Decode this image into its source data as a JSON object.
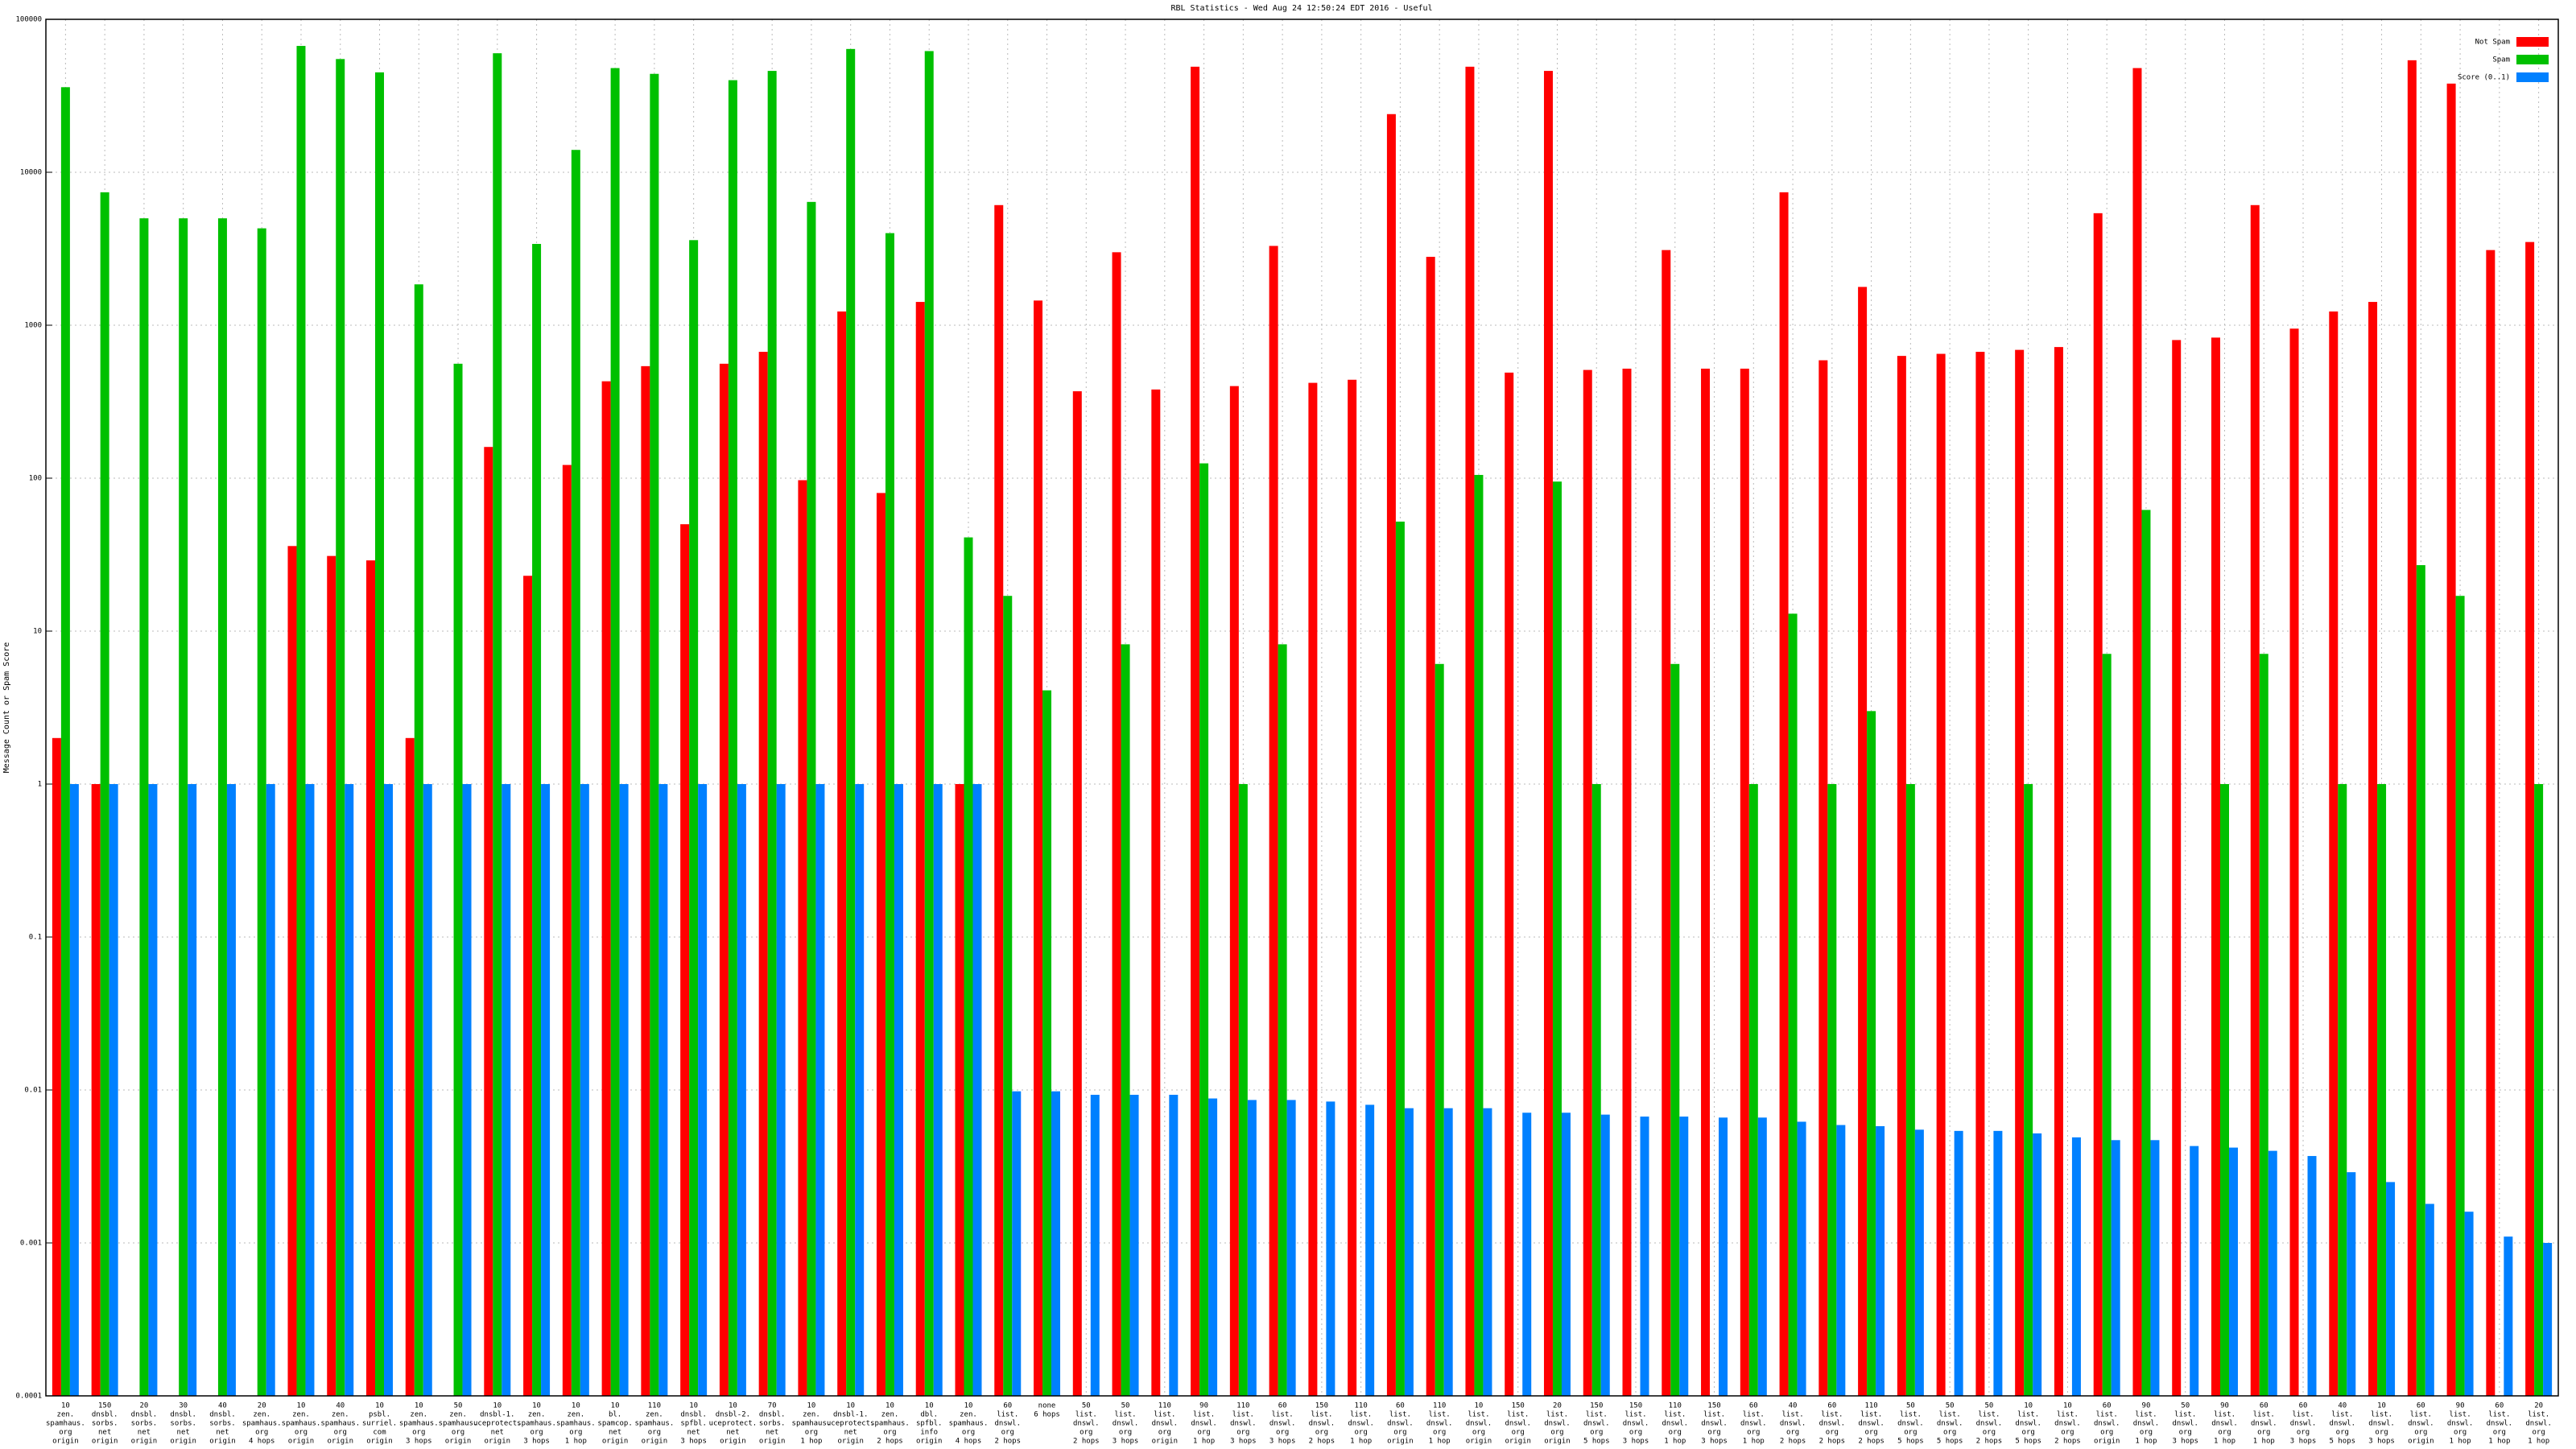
{
  "chart_data": {
    "type": "bar",
    "title": "RBL Statistics - Wed Aug 24 12:50:24 EDT 2016 - Useful",
    "y_label": "Message Count or Spam Score",
    "log_scale": true,
    "grid": true,
    "legend": "top-right",
    "ylim": [
      0.0001,
      100000
    ],
    "yticks": [
      0.0001,
      0.001,
      0.01,
      0.1,
      1,
      10,
      100,
      1000,
      10000,
      100000
    ],
    "categories": [
      [
        "10",
        "zen.",
        "spamhaus.",
        "org",
        "origin"
      ],
      [
        "150",
        "dnsbl.",
        "sorbs.",
        "net",
        "origin"
      ],
      [
        "20",
        "dnsbl.",
        "sorbs.",
        "net",
        "origin"
      ],
      [
        "30",
        "dnsbl.",
        "sorbs.",
        "net",
        "origin"
      ],
      [
        "40",
        "dnsbl.",
        "sorbs.",
        "net",
        "origin"
      ],
      [
        "20",
        "zen.",
        "spamhaus.",
        "org",
        "4 hops"
      ],
      [
        "10",
        "zen.",
        "spamhaus.",
        "org",
        "origin"
      ],
      [
        "40",
        "zen.",
        "spamhaus.",
        "org",
        "origin"
      ],
      [
        "10",
        "psbl.",
        "surriel.",
        "com",
        "origin"
      ],
      [
        "10",
        "zen.",
        "spamhaus.",
        "org",
        "3 hops"
      ],
      [
        "50",
        "zen.",
        "spamhaus.",
        "org",
        "origin"
      ],
      [
        "10",
        "dnsbl-1.",
        "uceprotect.",
        "net",
        "origin"
      ],
      [
        "10",
        "zen.",
        "spamhaus.",
        "org",
        "3 hops"
      ],
      [
        "10",
        "zen.",
        "spamhaus.",
        "org",
        "1 hop"
      ],
      [
        "10",
        "bl.",
        "spamcop.",
        "net",
        "origin"
      ],
      [
        "110",
        "zen.",
        "spamhaus.",
        "org",
        "origin"
      ],
      [
        "10",
        "dnsbl.",
        "spfbl.",
        "net",
        "3 hops"
      ],
      [
        "10",
        "dnsbl-2.",
        "uceprotect.",
        "net",
        "origin"
      ],
      [
        "70",
        "dnsbl.",
        "sorbs.",
        "net",
        "origin"
      ],
      [
        "10",
        "zen.",
        "spamhaus.",
        "org",
        "1 hop"
      ],
      [
        "10",
        "dnsbl-1.",
        "uceprotect.",
        "net",
        "origin"
      ],
      [
        "10",
        "zen.",
        "spamhaus.",
        "org",
        "2 hops"
      ],
      [
        "10",
        "dbl.",
        "spfbl.",
        "info",
        "origin"
      ],
      [
        "10",
        "zen.",
        "spamhaus.",
        "org",
        "4 hops"
      ],
      [
        "60",
        "list.",
        "dnswl.",
        "org",
        "2 hops"
      ],
      [
        "none",
        "6 hops"
      ],
      [
        "50",
        "list.",
        "dnswl.",
        "org",
        "2 hops"
      ],
      [
        "50",
        "list.",
        "dnswl.",
        "org",
        "3 hops"
      ],
      [
        "110",
        "list.",
        "dnswl.",
        "org",
        "origin"
      ],
      [
        "90",
        "list.",
        "dnswl.",
        "org",
        "1 hop"
      ],
      [
        "110",
        "list.",
        "dnswl.",
        "org",
        "3 hops"
      ],
      [
        "60",
        "list.",
        "dnswl.",
        "org",
        "3 hops"
      ],
      [
        "150",
        "list.",
        "dnswl.",
        "org",
        "2 hops"
      ],
      [
        "110",
        "list.",
        "dnswl.",
        "org",
        "1 hop"
      ],
      [
        "60",
        "list.",
        "dnswl.",
        "org",
        "origin"
      ],
      [
        "110",
        "list.",
        "dnswl.",
        "org",
        "1 hop"
      ],
      [
        "10",
        "list.",
        "dnswl.",
        "org",
        "origin"
      ],
      [
        "150",
        "list.",
        "dnswl.",
        "org",
        "origin"
      ],
      [
        "20",
        "list.",
        "dnswl.",
        "org",
        "origin"
      ],
      [
        "150",
        "list.",
        "dnswl.",
        "org",
        "5 hops"
      ],
      [
        "150",
        "list.",
        "dnswl.",
        "org",
        "3 hops"
      ],
      [
        "110",
        "list.",
        "dnswl.",
        "org",
        "1 hop"
      ],
      [
        "150",
        "list.",
        "dnswl.",
        "org",
        "3 hops"
      ],
      [
        "60",
        "list.",
        "dnswl.",
        "org",
        "1 hop"
      ],
      [
        "40",
        "list.",
        "dnswl.",
        "org",
        "2 hops"
      ],
      [
        "60",
        "list.",
        "dnswl.",
        "org",
        "2 hops"
      ],
      [
        "110",
        "list.",
        "dnswl.",
        "org",
        "2 hops"
      ],
      [
        "50",
        "list.",
        "dnswl.",
        "org",
        "5 hops"
      ],
      [
        "50",
        "list.",
        "dnswl.",
        "org",
        "5 hops"
      ],
      [
        "50",
        "list.",
        "dnswl.",
        "org",
        "2 hops"
      ],
      [
        "10",
        "list.",
        "dnswl.",
        "org",
        "5 hops"
      ],
      [
        "10",
        "list.",
        "dnswl.",
        "org",
        "2 hops"
      ],
      [
        "60",
        "list.",
        "dnswl.",
        "org",
        "origin"
      ],
      [
        "90",
        "list.",
        "dnswl.",
        "org",
        "1 hop"
      ],
      [
        "50",
        "list.",
        "dnswl.",
        "org",
        "3 hops"
      ],
      [
        "90",
        "list.",
        "dnswl.",
        "org",
        "1 hop"
      ],
      [
        "60",
        "list.",
        "dnswl.",
        "org",
        "1 hop"
      ],
      [
        "60",
        "list.",
        "dnswl.",
        "org",
        "3 hops"
      ],
      [
        "40",
        "list.",
        "dnswl.",
        "org",
        "5 hops"
      ],
      [
        "10",
        "list.",
        "dnswl.",
        "org",
        "3 hops"
      ],
      [
        "60",
        "list.",
        "dnswl.",
        "org",
        "origin"
      ],
      [
        "90",
        "list.",
        "dnswl.",
        "org",
        "1 hop"
      ],
      [
        "60",
        "list.",
        "dnswl.",
        "org",
        "1 hop"
      ],
      [
        "20",
        "list.",
        "dnswl.",
        "org",
        "1 hop"
      ]
    ],
    "series": [
      {
        "name": "Not Spam",
        "color": "#ff0000",
        "values": [
          2,
          1,
          null,
          null,
          null,
          null,
          36,
          31,
          29,
          2,
          null,
          160,
          23,
          122,
          430,
          540,
          50,
          560,
          670,
          97,
          1230,
          80,
          1420,
          1,
          6100,
          1450,
          370,
          3000,
          380,
          49000,
          400,
          3300,
          420,
          440,
          24000,
          2800,
          49000,
          490,
          46000,
          510,
          520,
          3100,
          520,
          520,
          7400,
          590,
          1780,
          630,
          650,
          670,
          690,
          720,
          5400,
          48000,
          800,
          830,
          6100,
          950,
          1230,
          1420,
          54000,
          38000,
          3100,
          3500
        ]
      },
      {
        "name": "Spam",
        "color": "#00c000",
        "values": [
          36000,
          7400,
          5000,
          5000,
          5000,
          4300,
          67000,
          55000,
          45000,
          1850,
          560,
          60000,
          3400,
          14000,
          48000,
          44000,
          3600,
          40000,
          46000,
          6400,
          64000,
          4000,
          62000,
          41,
          17,
          4.1,
          null,
          8.2,
          null,
          125,
          1,
          8.2,
          null,
          null,
          52,
          6.1,
          105,
          null,
          95,
          1,
          null,
          6.1,
          null,
          1,
          13,
          1,
          3,
          1,
          null,
          null,
          1,
          null,
          7.1,
          62,
          null,
          1,
          7.1,
          null,
          1,
          1,
          27,
          17,
          null,
          1
        ]
      },
      {
        "name": "Score (0..1)",
        "color": "#0080ff",
        "values": [
          1,
          1,
          1,
          1,
          1,
          1,
          1,
          1,
          1,
          1,
          1,
          1,
          1,
          1,
          1,
          1,
          1,
          1,
          1,
          1,
          1,
          1,
          1,
          1,
          0.0098,
          0.0098,
          0.0093,
          0.0093,
          0.0093,
          0.0088,
          0.0086,
          0.0086,
          0.0084,
          0.008,
          0.0076,
          0.0076,
          0.0076,
          0.0071,
          0.0071,
          0.0069,
          0.0067,
          0.0067,
          0.0066,
          0.0066,
          0.0062,
          0.0059,
          0.0058,
          0.0055,
          0.0054,
          0.0054,
          0.0052,
          0.0049,
          0.0047,
          0.0047,
          0.0043,
          0.0042,
          0.004,
          0.0037,
          0.0029,
          0.0025,
          0.0018,
          0.0016,
          0.0011,
          0.001
        ]
      }
    ]
  }
}
